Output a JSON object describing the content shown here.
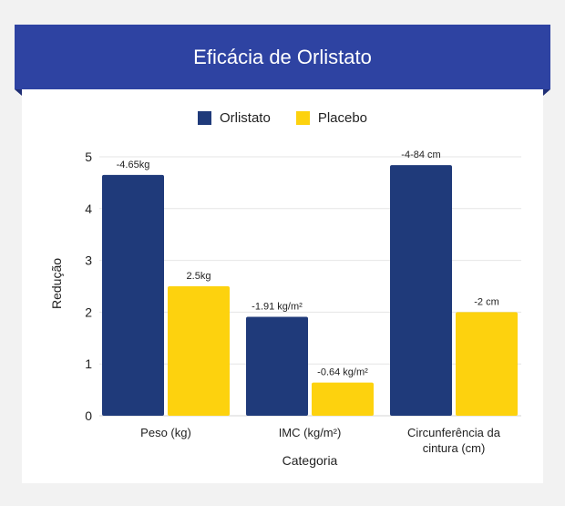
{
  "header": {
    "title": "Eficácia de Orlistato"
  },
  "colors": {
    "banner": "#2e43a2",
    "orlistato": "#1f3a7a",
    "placebo": "#fdd20e",
    "grid": "#e6e6e6"
  },
  "chart_data": {
    "type": "bar",
    "title": "Eficácia de Orlistato",
    "xlabel": "Categoria",
    "ylabel": "Redução",
    "ylim": [
      0,
      5
    ],
    "yticks": [
      0,
      1,
      2,
      3,
      4,
      5
    ],
    "grid": true,
    "legend": "top-center",
    "categories": [
      [
        "Peso (kg)"
      ],
      [
        "IMC (kg/m²)"
      ],
      [
        "Circunferência da",
        "cintura (cm)"
      ]
    ],
    "series": [
      {
        "name": "Orlistato",
        "color": "#1f3a7a",
        "values": [
          4.65,
          1.91,
          4.84
        ],
        "labels": [
          "-4.65kg",
          "-1.91 kg/m²",
          "-4-84 cm"
        ]
      },
      {
        "name": "Placebo",
        "color": "#fdd20e",
        "values": [
          2.5,
          0.64,
          2.0
        ],
        "labels": [
          "2.5kg",
          "-0.64 kg/m²",
          "-2 cm"
        ]
      }
    ]
  }
}
